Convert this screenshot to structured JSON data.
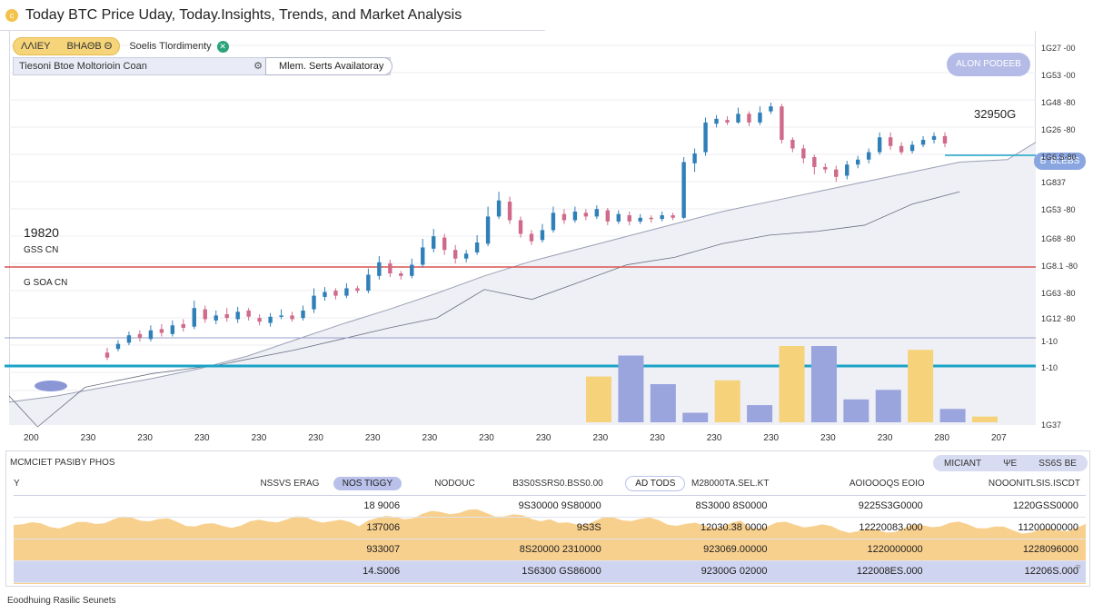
{
  "header": {
    "title": "Today BTC Price Uday, Today.Insights, Trends, and Market Analysis",
    "logo_glyph": "c"
  },
  "toolbar": {
    "pill_left": "ΛΛΙΕΥ",
    "pill_right": "ΒΗΑΘΒ Θ",
    "label": "Soelis Tlordimenty",
    "green_icon_glyph": "✕"
  },
  "search": {
    "label": "Tiesoni Btoe Moltorioin Coan",
    "select_value": "Mlem. Serts Availatoray"
  },
  "align_button": "ALON PODEEB",
  "price_tag": "32950G",
  "blue_tag": "Β' ΒLΕΒS",
  "left_labels": {
    "value": "19820",
    "sub1": "GSS CN",
    "sub2": "G SOA CN"
  },
  "y_axis_labels": [
    "1G27 -00",
    "1G53 -00",
    "1G48 -80",
    "1G26 -80",
    "1G6.S-80",
    "1G837",
    "1G53 -80",
    "1G68 -80",
    "1G8.1 -80",
    "1G63 -80",
    "1G12 -80",
    "1-10",
    "1-10",
    "1G37"
  ],
  "x_axis_labels": [
    "200",
    "230",
    "230",
    "230",
    "230",
    "230",
    "230",
    "230",
    "230",
    "230",
    "230",
    "230",
    "230",
    "230",
    "230",
    "230",
    "280",
    "207"
  ],
  "chart_data": {
    "type": "candlestick",
    "title": "Today BTC Price Uday, Today.Insights, Trends, and Market Analysis",
    "reference_lines": [
      {
        "name": "red",
        "color": "#d9534f"
      },
      {
        "name": "cyan",
        "color": "#1ba3c6"
      }
    ],
    "candles": [
      [
        0,
        10.0,
        9.6,
        10.4,
        9.4
      ],
      [
        1,
        10.3,
        10.7,
        11.0,
        10.1
      ],
      [
        2,
        10.8,
        11.4,
        11.7,
        10.6
      ],
      [
        3,
        11.5,
        11.2,
        11.8,
        10.9
      ],
      [
        4,
        11.1,
        11.8,
        12.2,
        10.9
      ],
      [
        5,
        11.9,
        11.6,
        12.3,
        11.3
      ],
      [
        6,
        11.5,
        12.2,
        12.6,
        11.3
      ],
      [
        7,
        12.3,
        12.0,
        12.7,
        11.7
      ],
      [
        8,
        12.1,
        13.6,
        14.2,
        11.9
      ],
      [
        9,
        13.5,
        12.7,
        13.8,
        12.4
      ],
      [
        10,
        12.6,
        13.0,
        13.4,
        12.3
      ],
      [
        11,
        13.1,
        12.8,
        13.6,
        12.5
      ],
      [
        12,
        12.7,
        13.3,
        13.7,
        12.4
      ],
      [
        13,
        13.4,
        12.9,
        13.6,
        12.6
      ],
      [
        14,
        12.8,
        12.5,
        13.1,
        12.2
      ],
      [
        15,
        12.4,
        12.9,
        13.2,
        12.1
      ],
      [
        16,
        12.9,
        13.0,
        13.5,
        12.7
      ],
      [
        17,
        13.0,
        12.7,
        13.3,
        12.5
      ],
      [
        18,
        12.8,
        13.4,
        13.8,
        12.6
      ],
      [
        19,
        13.5,
        14.6,
        15.2,
        13.2
      ],
      [
        20,
        14.5,
        14.9,
        15.3,
        14.2
      ],
      [
        21,
        15.0,
        14.6,
        15.2,
        14.3
      ],
      [
        22,
        14.6,
        15.2,
        15.6,
        14.4
      ],
      [
        23,
        15.2,
        15.0,
        15.4,
        14.8
      ],
      [
        24,
        15.0,
        16.3,
        16.8,
        14.8
      ],
      [
        25,
        16.2,
        17.3,
        17.8,
        15.9
      ],
      [
        26,
        17.2,
        16.4,
        17.5,
        16.1
      ],
      [
        27,
        16.4,
        16.2,
        16.6,
        15.9
      ],
      [
        28,
        16.2,
        17.1,
        17.6,
        16.0
      ],
      [
        29,
        17.1,
        18.5,
        19.2,
        16.9
      ],
      [
        30,
        18.4,
        19.4,
        20.0,
        18.1
      ],
      [
        31,
        19.3,
        18.3,
        19.6,
        17.9
      ],
      [
        32,
        18.3,
        17.6,
        18.7,
        17.2
      ],
      [
        33,
        17.6,
        18.0,
        18.3,
        17.3
      ],
      [
        34,
        18.1,
        18.9,
        19.5,
        17.9
      ],
      [
        35,
        18.8,
        21.0,
        21.8,
        18.6
      ],
      [
        36,
        21.0,
        22.3,
        23.0,
        20.8
      ],
      [
        37,
        22.2,
        20.7,
        22.6,
        20.4
      ],
      [
        38,
        20.7,
        19.6,
        21.0,
        19.3
      ],
      [
        39,
        19.6,
        19.0,
        19.9,
        18.7
      ],
      [
        40,
        19.1,
        19.9,
        20.4,
        18.9
      ],
      [
        41,
        19.9,
        21.3,
        21.8,
        19.7
      ],
      [
        42,
        21.2,
        20.7,
        21.6,
        20.4
      ],
      [
        43,
        20.7,
        21.4,
        21.8,
        20.5
      ],
      [
        44,
        21.3,
        21.0,
        21.6,
        20.7
      ],
      [
        45,
        21.0,
        21.6,
        21.9,
        20.8
      ],
      [
        46,
        21.5,
        20.6,
        21.7,
        20.3
      ],
      [
        47,
        20.6,
        21.2,
        21.5,
        20.4
      ],
      [
        48,
        21.1,
        20.6,
        21.4,
        20.3
      ],
      [
        49,
        20.6,
        20.9,
        21.2,
        20.4
      ],
      [
        50,
        20.9,
        20.8,
        21.1,
        20.5
      ],
      [
        51,
        20.8,
        21.1,
        21.4,
        20.6
      ],
      [
        52,
        21.1,
        20.9,
        21.3,
        20.7
      ],
      [
        53,
        20.9,
        25.4,
        25.8,
        20.8
      ],
      [
        54,
        25.3,
        26.1,
        26.5,
        24.6
      ],
      [
        55,
        26.2,
        28.6,
        29.0,
        25.9
      ],
      [
        56,
        28.5,
        28.9,
        29.2,
        28.2
      ],
      [
        57,
        28.8,
        28.6,
        29.1,
        28.4
      ],
      [
        58,
        28.6,
        29.3,
        29.8,
        28.5
      ],
      [
        59,
        29.3,
        28.6,
        29.5,
        28.3
      ],
      [
        60,
        28.6,
        29.4,
        29.9,
        28.4
      ],
      [
        61,
        29.5,
        29.9,
        30.2,
        29.3
      ],
      [
        62,
        29.9,
        27.2,
        30.1,
        26.9
      ],
      [
        63,
        27.2,
        26.5,
        27.4,
        26.2
      ],
      [
        64,
        26.5,
        25.7,
        26.8,
        25.3
      ],
      [
        65,
        25.8,
        25.0,
        26.0,
        24.4
      ],
      [
        66,
        25.0,
        24.8,
        25.3,
        24.5
      ],
      [
        67,
        24.8,
        24.2,
        25.1,
        23.8
      ],
      [
        68,
        24.3,
        25.2,
        25.5,
        24.0
      ],
      [
        69,
        25.2,
        25.6,
        25.9,
        24.9
      ],
      [
        70,
        25.6,
        26.2,
        26.5,
        25.3
      ],
      [
        71,
        26.2,
        27.4,
        27.8,
        26.0
      ],
      [
        72,
        27.4,
        26.7,
        27.8,
        26.4
      ],
      [
        73,
        26.7,
        26.2,
        27.0,
        26.0
      ],
      [
        74,
        26.3,
        26.8,
        27.1,
        26.1
      ],
      [
        75,
        26.8,
        27.2,
        27.5,
        26.6
      ],
      [
        76,
        27.2,
        27.5,
        27.8,
        26.9
      ],
      [
        77,
        27.5,
        26.9,
        27.8,
        26.6
      ]
    ],
    "volume": [
      {
        "x": 60,
        "value": 2.4,
        "color": "yellow"
      },
      {
        "x": 62,
        "value": 3.5,
        "color": "blue"
      },
      {
        "x": 64,
        "value": 2.0,
        "color": "blue"
      },
      {
        "x": 66,
        "value": 0.5,
        "color": "blue"
      },
      {
        "x": 68,
        "value": 2.2,
        "color": "yellow"
      },
      {
        "x": 70,
        "value": 0.9,
        "color": "blue"
      },
      {
        "x": 72,
        "value": 4.0,
        "color": "yellow"
      },
      {
        "x": 74,
        "value": 4.0,
        "color": "blue"
      },
      {
        "x": 76,
        "value": 1.2,
        "color": "blue"
      },
      {
        "x": 78,
        "value": 1.7,
        "color": "blue"
      },
      {
        "x": 80,
        "value": 3.8,
        "color": "yellow"
      },
      {
        "x": 82,
        "value": 0.7,
        "color": "blue"
      },
      {
        "x": 84,
        "value": 0.3,
        "color": "yellow"
      }
    ],
    "area_line": [
      [
        0,
        6
      ],
      [
        5,
        6.5
      ],
      [
        10,
        7.2
      ],
      [
        15,
        7.9
      ],
      [
        20,
        8.7
      ],
      [
        25,
        9.7
      ],
      [
        30,
        11.0
      ],
      [
        35,
        12.3
      ],
      [
        40,
        13.5
      ],
      [
        45,
        14.8
      ],
      [
        50,
        16.2
      ],
      [
        55,
        17.4
      ],
      [
        60,
        18.4
      ],
      [
        65,
        19.4
      ],
      [
        70,
        20.4
      ],
      [
        75,
        21.4
      ],
      [
        80,
        22.2
      ],
      [
        85,
        23.0
      ],
      [
        90,
        23.8
      ],
      [
        95,
        24.6
      ],
      [
        100,
        25.4
      ],
      [
        105,
        25.6
      ],
      [
        108,
        27.0
      ]
    ],
    "trend_line": [
      [
        0,
        6.5
      ],
      [
        3,
        4.0
      ],
      [
        8,
        7.2
      ],
      [
        15,
        8.3
      ],
      [
        22,
        9.0
      ],
      [
        30,
        10.2
      ],
      [
        40,
        12.0
      ],
      [
        45,
        12.8
      ],
      [
        50,
        15.1
      ],
      [
        55,
        14.3
      ],
      [
        60,
        15.7
      ],
      [
        65,
        17.1
      ],
      [
        70,
        17.7
      ],
      [
        75,
        18.8
      ],
      [
        80,
        19.5
      ],
      [
        85,
        19.8
      ],
      [
        90,
        20.3
      ],
      [
        95,
        22.0
      ],
      [
        100,
        23.0
      ]
    ]
  },
  "bottom_panel": {
    "title": "MCMCIET PASIBY PHOS",
    "tabs": [
      "MICIANT",
      "ΨΕ",
      "SS6S ΒΕ"
    ],
    "columns": [
      "Y",
      "NSSVS ERAG",
      "NOS TIGGY",
      "NODOUC",
      "B3S0SSRS0.BSS0.00",
      "AD TODS",
      "M28000TA.SEL.KT",
      "AOIOOOQS EOIO",
      "NOOONITLSIS.ISCDT"
    ],
    "rows": [
      [
        "",
        "",
        "18 9006",
        "",
        "9S30000 9S80000",
        "",
        "8S3000 8S0000",
        "9225S3G0000",
        "1220GSS0000"
      ],
      [
        "",
        "",
        "13̄7006",
        "",
        "9S3S",
        "",
        "12030.38 0000",
        "12220083.000",
        "11200000000"
      ],
      [
        "",
        "",
        "933007",
        "",
        "8S20000 2310000",
        "",
        "923069.00000",
        "1220000000",
        "1228096000"
      ],
      [
        "",
        "",
        "14.S006",
        "",
        "1S6300 GS86000",
        "",
        "92300G 02000",
        "122008ΕS.000",
        "12206S.000"
      ]
    ]
  },
  "footer": "Eoodhuing Rasilic Seunets"
}
